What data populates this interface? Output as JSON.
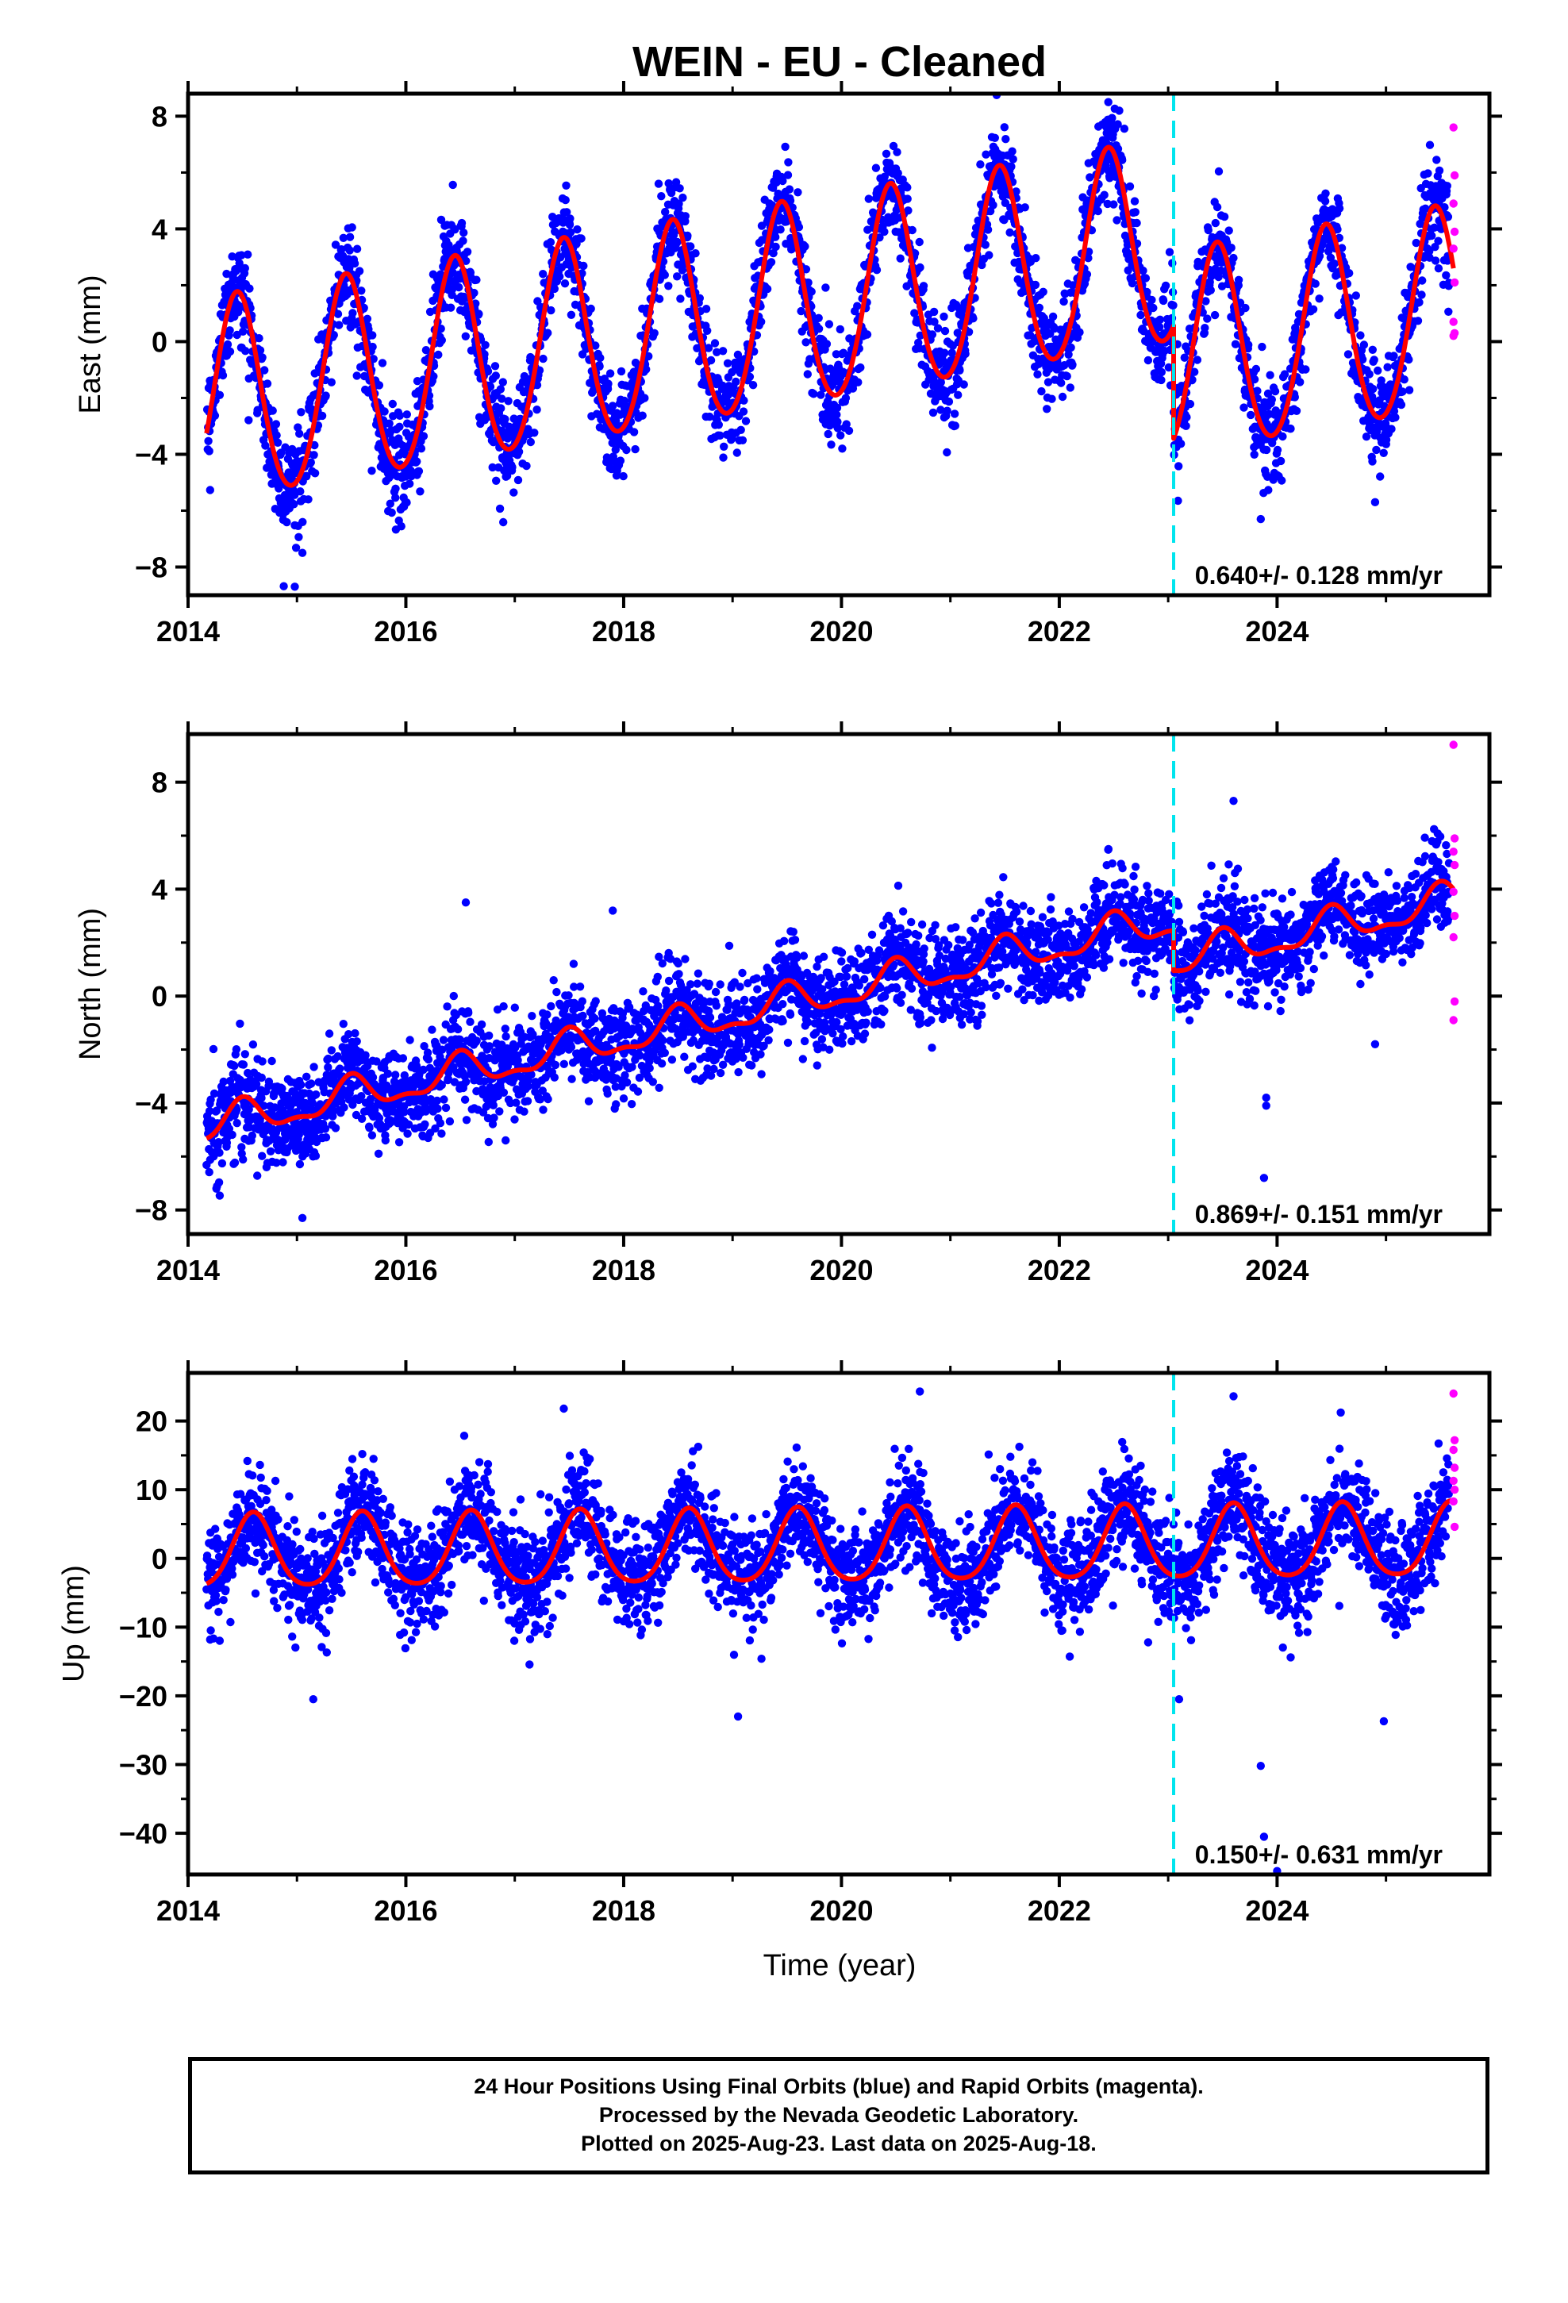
{
  "title": "WEIN  - EU - Cleaned",
  "x_axis_label": "Time (year)",
  "footer": {
    "line1": "24 Hour Positions Using Final Orbits (blue) and Rapid Orbits (magenta).",
    "line2": "Processed by the Nevada Geodetic Laboratory.",
    "line3": "Plotted on 2025-Aug-23. Last data on 2025-Aug-18."
  },
  "colors": {
    "final_orbits": "#0000ff",
    "rapid_orbits": "#ff00ff",
    "model_fit": "#ff0000",
    "event_line": "#00e5ee",
    "axes": "#000000"
  },
  "chart_data": [
    {
      "type": "scatter",
      "name": "east",
      "ylabel": "East (mm)",
      "xlim": [
        2014.0,
        2025.95
      ],
      "ylim": [
        -9.0,
        8.8
      ],
      "xticks": [
        2014,
        2016,
        2018,
        2020,
        2022,
        2024
      ],
      "yticks": [
        -8,
        -4,
        0,
        4,
        8
      ],
      "rate_annotation": "0.640+/- 0.128 mm/yr",
      "event_line_year": 2023.05,
      "data_span": [
        2014.17,
        2025.62
      ],
      "model": {
        "rate_mm_per_yr": 0.64,
        "offset_at_2014_17": -2.3,
        "annual_amplitude": 3.6,
        "annual_peak_phase": 0.45,
        "semiannual_amplitude": 0.3,
        "jump_year": 2023.05,
        "jump_mm": -4.0,
        "noise_sigma": 0.9
      },
      "outliers": [
        [
          2014.98,
          -8.7
        ],
        [
          2015.05,
          -7.5
        ],
        [
          2022.45,
          8.5
        ],
        [
          2023.85,
          -6.3
        ],
        [
          2024.9,
          -5.7
        ]
      ],
      "rapid_points": [
        [
          2025.62,
          7.6
        ],
        [
          2025.63,
          5.9
        ],
        [
          2025.62,
          4.9
        ],
        [
          2025.63,
          3.9
        ],
        [
          2025.62,
          3.3
        ],
        [
          2025.63,
          2.1
        ],
        [
          2025.62,
          0.7
        ],
        [
          2025.63,
          0.3
        ],
        [
          2025.62,
          0.2
        ]
      ]
    },
    {
      "type": "scatter",
      "name": "north",
      "ylabel": "North (mm)",
      "xlim": [
        2014.0,
        2025.95
      ],
      "ylim": [
        -8.9,
        9.8
      ],
      "xticks": [
        2014,
        2016,
        2018,
        2020,
        2022,
        2024
      ],
      "yticks": [
        -8,
        -4,
        0,
        4,
        8
      ],
      "rate_annotation": "0.869+/- 0.151 mm/yr",
      "event_line_year": 2023.05,
      "data_span": [
        2014.17,
        2025.62
      ],
      "model": {
        "rate_mm_per_yr": 0.869,
        "offset_at_2014_17": -4.9,
        "annual_amplitude": 0.6,
        "annual_peak_phase": 0.5,
        "semiannual_amplitude": 0.25,
        "jump_year": 2023.05,
        "jump_mm": -1.5,
        "noise_sigma": 0.9
      },
      "outliers": [
        [
          2015.05,
          -8.3
        ],
        [
          2023.88,
          -6.8
        ],
        [
          2023.9,
          -3.8
        ],
        [
          2023.9,
          -4.1
        ],
        [
          2023.6,
          7.3
        ],
        [
          2024.9,
          -1.8
        ],
        [
          2016.55,
          3.5
        ],
        [
          2017.9,
          3.2
        ]
      ],
      "rapid_points": [
        [
          2025.62,
          9.4
        ],
        [
          2025.63,
          5.9
        ],
        [
          2025.62,
          5.4
        ],
        [
          2025.63,
          4.9
        ],
        [
          2025.62,
          3.9
        ],
        [
          2025.63,
          3.0
        ],
        [
          2025.62,
          2.2
        ],
        [
          2025.63,
          -0.2
        ],
        [
          2025.62,
          -0.9
        ]
      ]
    },
    {
      "type": "scatter",
      "name": "up",
      "ylabel": "Up (mm)",
      "xlim": [
        2014.0,
        2025.95
      ],
      "ylim": [
        -46.0,
        27.0
      ],
      "xticks": [
        2014,
        2016,
        2018,
        2020,
        2022,
        2024
      ],
      "yticks": [
        -40,
        -30,
        -20,
        -10,
        0,
        10,
        20
      ],
      "rate_annotation": "0.150+/- 0.631 mm/yr",
      "event_line_year": 2023.05,
      "data_span": [
        2014.17,
        2025.62
      ],
      "model": {
        "rate_mm_per_yr": 0.15,
        "offset_at_2014_17": 0.6,
        "annual_amplitude": 5.3,
        "annual_peak_phase": 0.6,
        "semiannual_amplitude": 0.8,
        "jump_year": 2023.05,
        "jump_mm": 0.0,
        "noise_sigma": 3.8
      },
      "outliers": [
        [
          2017.45,
          21.8
        ],
        [
          2020.72,
          24.3
        ],
        [
          2023.85,
          -30.2
        ],
        [
          2023.88,
          -40.5
        ],
        [
          2024.0,
          -45.5
        ],
        [
          2023.6,
          23.6
        ],
        [
          2023.1,
          -20.5
        ],
        [
          2015.15,
          -20.5
        ],
        [
          2019.05,
          -23.0
        ],
        [
          2024.98,
          -23.7
        ],
        [
          2015.6,
          15.2
        ]
      ],
      "rapid_points": [
        [
          2025.62,
          24.0
        ],
        [
          2025.63,
          17.2
        ],
        [
          2025.62,
          15.8
        ],
        [
          2025.63,
          13.2
        ],
        [
          2025.62,
          11.3
        ],
        [
          2025.63,
          10.0
        ],
        [
          2025.62,
          8.3
        ],
        [
          2025.63,
          4.6
        ]
      ]
    }
  ]
}
